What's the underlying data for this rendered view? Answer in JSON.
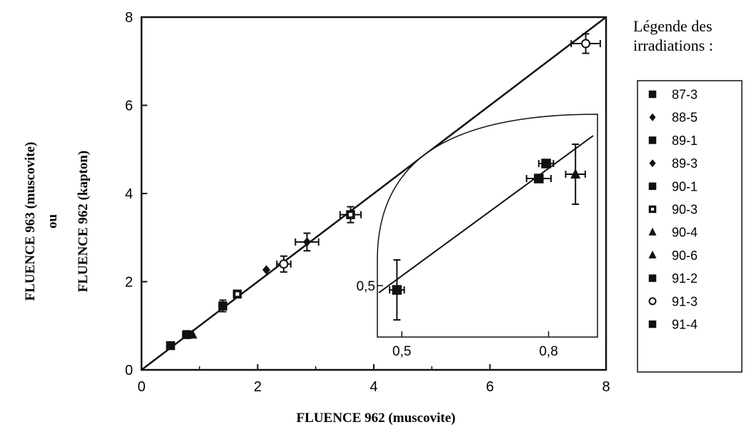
{
  "chart_data": {
    "type": "scatter",
    "xlabel": "FLUENCE 962 (muscovite)",
    "ylabel_lines": [
      "FLUENCE 963 (muscovite)",
      "ou",
      "FLUENCE 962 (kapton)"
    ],
    "xlim": [
      0,
      8
    ],
    "ylim": [
      0,
      8
    ],
    "xticks": [
      "0",
      "2",
      "4",
      "6",
      "8"
    ],
    "yticks": [
      "0",
      "2",
      "4",
      "6",
      "8"
    ],
    "grid": false,
    "reference_line": {
      "x": [
        0,
        8
      ],
      "y": [
        0,
        8
      ]
    },
    "legend": {
      "placement": "right",
      "title_lines": [
        "Légende des",
        "irradiations :"
      ],
      "entries": [
        {
          "label": "87-3",
          "marker": "square"
        },
        {
          "label": "88-5",
          "marker": "diamond"
        },
        {
          "label": "89-1",
          "marker": "square"
        },
        {
          "label": "89-3",
          "marker": "diamond"
        },
        {
          "label": "90-1",
          "marker": "square"
        },
        {
          "label": "90-3",
          "marker": "square-open"
        },
        {
          "label": "90-4",
          "marker": "triangle"
        },
        {
          "label": "90-6",
          "marker": "triangle"
        },
        {
          "label": "91-2",
          "marker": "square"
        },
        {
          "label": "91-3",
          "marker": "circle-open"
        },
        {
          "label": "91-4",
          "marker": "square"
        }
      ]
    },
    "points": [
      {
        "x": 0.5,
        "y": 0.55,
        "marker": "square",
        "xerr": 0,
        "yerr": 0
      },
      {
        "x": 0.78,
        "y": 0.8,
        "marker": "square",
        "xerr": 0.07,
        "yerr": 0.05
      },
      {
        "x": 0.88,
        "y": 0.8,
        "marker": "triangle",
        "xerr": 0,
        "yerr": 0
      },
      {
        "x": 1.4,
        "y": 1.45,
        "marker": "square",
        "xerr": 0,
        "yerr": 0.13
      },
      {
        "x": 1.65,
        "y": 1.72,
        "marker": "square-open",
        "xerr": 0,
        "yerr": 0
      },
      {
        "x": 2.15,
        "y": 2.27,
        "marker": "diamond",
        "xerr": 0,
        "yerr": 0
      },
      {
        "x": 2.45,
        "y": 2.4,
        "marker": "circle-open",
        "xerr": 0.12,
        "yerr": 0.18
      },
      {
        "x": 2.85,
        "y": 2.9,
        "marker": "diamond",
        "xerr": 0.2,
        "yerr": 0.2
      },
      {
        "x": 3.6,
        "y": 3.52,
        "marker": "square-open",
        "xerr": 0.18,
        "yerr": 0.18
      },
      {
        "x": 7.65,
        "y": 7.4,
        "marker": "circle-open",
        "xerr": 0.25,
        "yerr": 0.22
      }
    ],
    "inset": {
      "x_ticks": [
        "0,5",
        "0,8"
      ],
      "y_ticks": [
        "0,5"
      ],
      "points": [
        {
          "x": 0.49,
          "y": 0.49,
          "marker": "square",
          "xerr": 0.015,
          "yerr": 0.07
        },
        {
          "x": 0.78,
          "y": 0.75,
          "marker": "square",
          "xerr": 0.025,
          "yerr": 0
        },
        {
          "x": 0.795,
          "y": 0.785,
          "marker": "square",
          "xerr": 0.015,
          "yerr": 0
        },
        {
          "x": 0.855,
          "y": 0.76,
          "marker": "triangle",
          "xerr": 0.02,
          "yerr": 0.07
        }
      ]
    }
  }
}
